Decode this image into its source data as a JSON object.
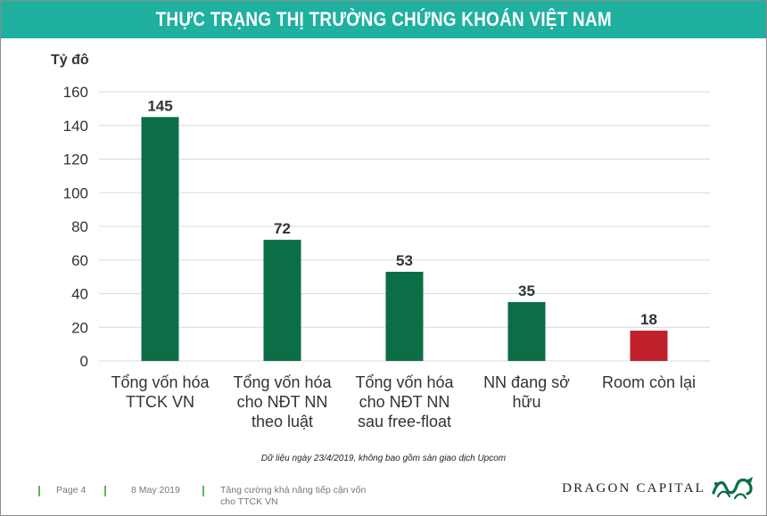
{
  "title": "THỰC TRẠNG THỊ TRƯỜNG CHỨNG KHOÁN VIỆT NAM",
  "chart_data": {
    "type": "bar",
    "unit_label": "Tỷ đô",
    "categories": [
      [
        "Tổng vốn hóa",
        "TTCK VN"
      ],
      [
        "Tổng vốn hóa",
        "cho NĐT NN",
        "theo luật"
      ],
      [
        "Tổng vốn hóa",
        "cho NĐT NN",
        "sau free-float"
      ],
      [
        "NN đang sở",
        "hữu"
      ],
      [
        "Room còn lại"
      ]
    ],
    "values": [
      145,
      72,
      53,
      35,
      18
    ],
    "data_labels": [
      "145",
      "72",
      "53",
      "35",
      "18"
    ],
    "colors": [
      "#0b6e47",
      "#0b6e47",
      "#0b6e47",
      "#0b6e47",
      "#c0202a"
    ],
    "ylim": [
      0,
      160
    ],
    "yticks": [
      "0",
      "20",
      "40",
      "60",
      "80",
      "100",
      "120",
      "140",
      "160"
    ],
    "grid": true
  },
  "note": "Dữ liệu ngày 23/4/2019, không bao gồm sàn giao dịch Upcom",
  "footer": {
    "page": "Page 4",
    "date": "8 May 2019",
    "topic_line1": "Tăng cường khả năng tiếp cận vốn",
    "topic_line2": "cho TTCK VN",
    "brand": "DRAGON CAPITAL"
  },
  "colors": {
    "title_bar": "#1fb0a0",
    "footer_accent": "#5cb85c",
    "logo": "#0b6e47"
  },
  "icons": {
    "logo": "dragon-logo-icon"
  }
}
